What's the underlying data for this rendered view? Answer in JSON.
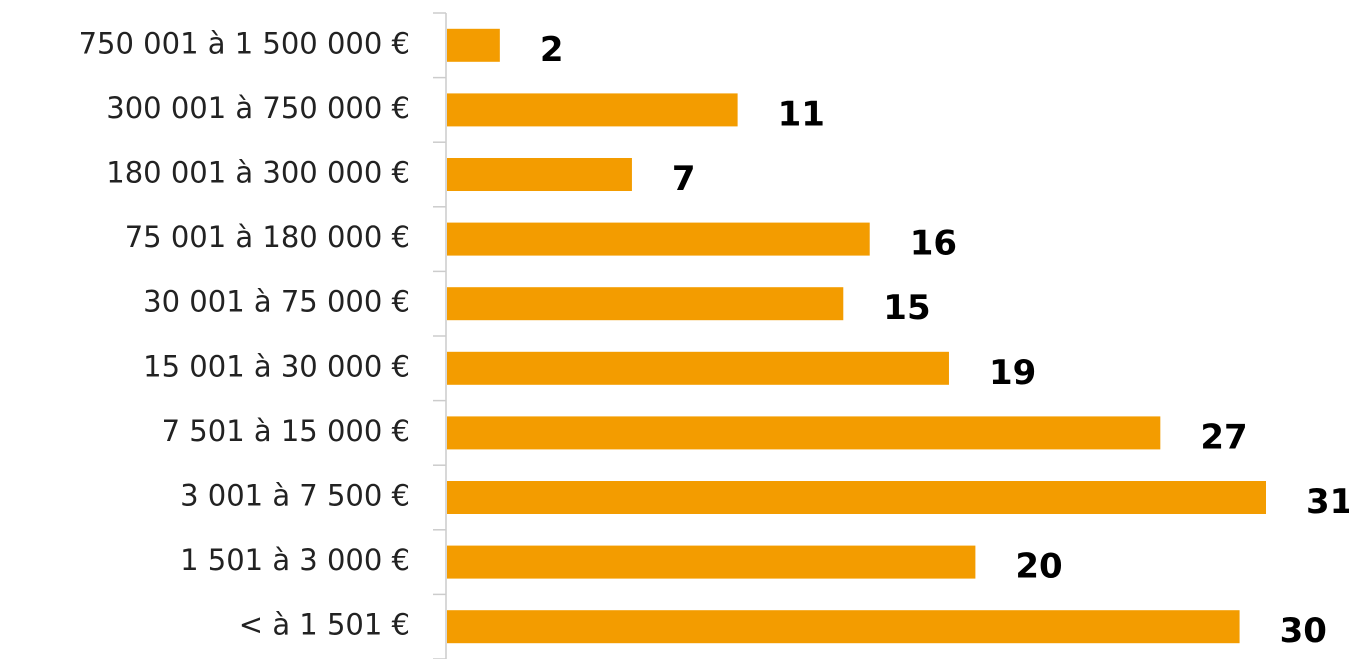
{
  "chart_data": {
    "type": "bar",
    "orientation": "horizontal",
    "categories": [
      "750 001 à 1 500 000 €",
      "300 001 à 750 000 €",
      "180 001 à 300 000 €",
      "75 001 à 180 000 €",
      "30 001 à 75 000 €",
      "15 001 à 30 000 €",
      "7 501 à 15 000 €",
      "3 001 à 7 500 €",
      "1 501 à 3 000 €",
      "< à 1 501 €"
    ],
    "values": [
      2,
      11,
      7,
      16,
      15,
      19,
      27,
      31,
      20,
      30
    ],
    "color": "#f39c00"
  }
}
